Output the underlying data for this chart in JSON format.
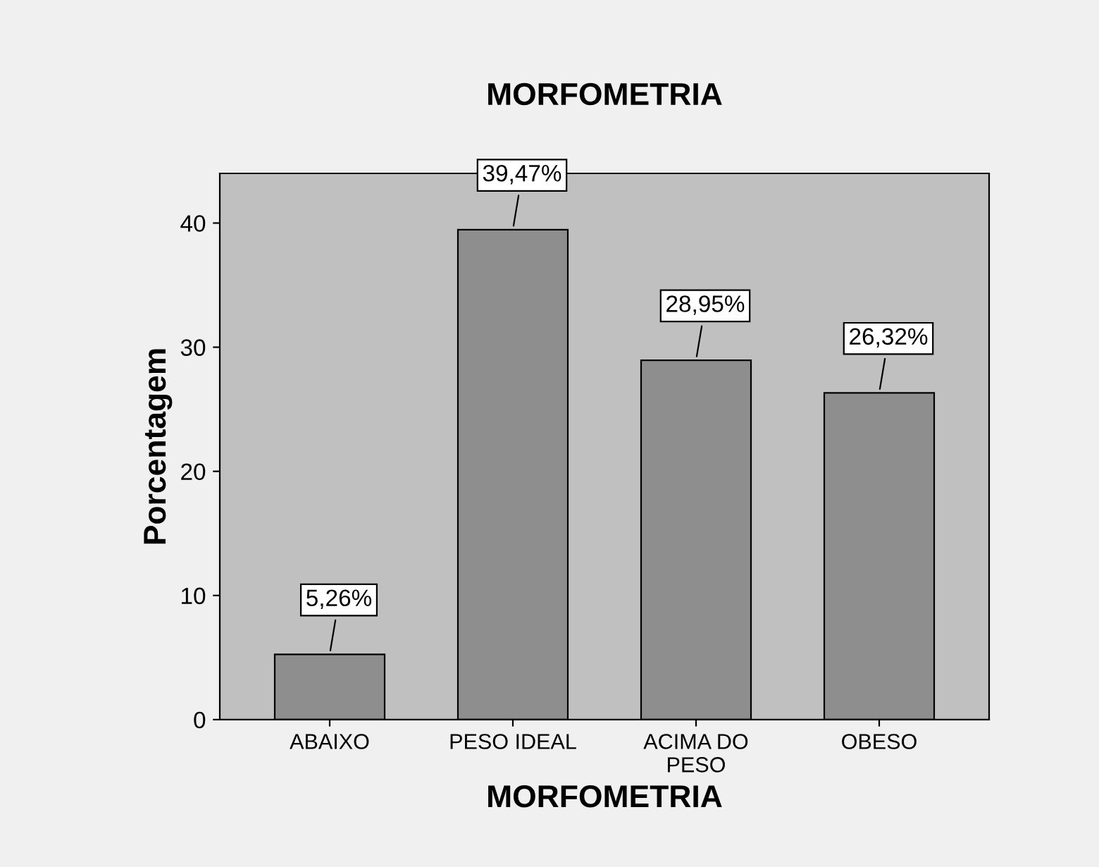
{
  "chart_data": {
    "type": "bar",
    "title": "MORFOMETRIA",
    "xlabel": "MORFOMETRIA",
    "ylabel": "Porcentagem",
    "categories": [
      "ABAIXO",
      "PESO IDEAL",
      "ACIMA DO\nPESO",
      "OBESO"
    ],
    "values": [
      5.26,
      39.47,
      28.95,
      26.32
    ],
    "value_labels": [
      "5,26%",
      "39,47%",
      "28,95%",
      "26,32%"
    ],
    "color": "#8e8e8e",
    "ylim": [
      0,
      44
    ],
    "yticks": [
      0,
      10,
      20,
      30,
      40
    ],
    "grid": false,
    "legend": false
  }
}
